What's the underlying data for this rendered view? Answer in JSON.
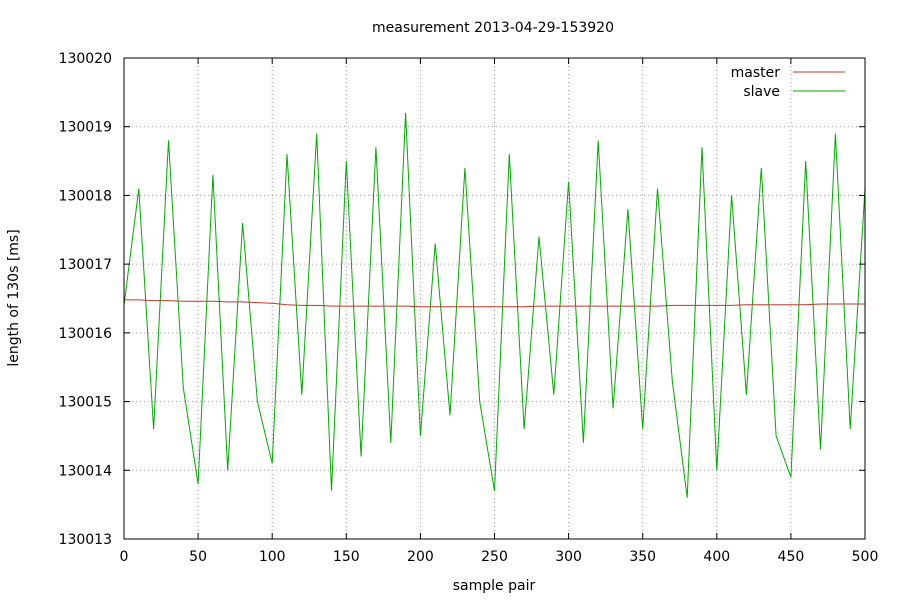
{
  "chart_data": {
    "type": "line",
    "title": "measurement 2013-04-29-153920",
    "xlabel": "sample pair",
    "ylabel": "length of 130s [ms]",
    "xlim": [
      0,
      500
    ],
    "ylim": [
      130013,
      130020
    ],
    "x_ticks": [
      "0",
      "50",
      "100",
      "150",
      "200",
      "250",
      "300",
      "350",
      "400",
      "450",
      "500"
    ],
    "y_ticks": [
      "130013",
      "130014",
      "130015",
      "130016",
      "130017",
      "130018",
      "130019",
      "130020"
    ],
    "grid": true,
    "legend_position": "top-right",
    "series": [
      {
        "name": "master",
        "color": "#c0392b",
        "x": [
          0,
          10,
          20,
          30,
          40,
          50,
          60,
          70,
          80,
          90,
          100,
          110,
          120,
          130,
          140,
          150,
          160,
          170,
          180,
          190,
          200,
          210,
          220,
          230,
          240,
          250,
          260,
          270,
          280,
          290,
          300,
          310,
          320,
          330,
          340,
          350,
          360,
          370,
          380,
          390,
          400,
          410,
          420,
          430,
          440,
          450,
          460,
          470,
          480,
          490,
          500
        ],
        "values": [
          130016.48,
          130016.48,
          130016.47,
          130016.47,
          130016.46,
          130016.46,
          130016.46,
          130016.45,
          130016.45,
          130016.44,
          130016.43,
          130016.41,
          130016.4,
          130016.4,
          130016.39,
          130016.39,
          130016.39,
          130016.39,
          130016.39,
          130016.39,
          130016.38,
          130016.38,
          130016.38,
          130016.38,
          130016.38,
          130016.38,
          130016.38,
          130016.38,
          130016.39,
          130016.39,
          130016.39,
          130016.39,
          130016.39,
          130016.39,
          130016.39,
          130016.39,
          130016.39,
          130016.4,
          130016.4,
          130016.4,
          130016.4,
          130016.4,
          130016.41,
          130016.41,
          130016.41,
          130016.41,
          130016.41,
          130016.42,
          130016.42,
          130016.42,
          130016.42
        ]
      },
      {
        "name": "slave",
        "color": "#00aa00",
        "x": [
          0,
          10,
          20,
          30,
          40,
          50,
          60,
          70,
          80,
          90,
          100,
          110,
          120,
          130,
          140,
          150,
          160,
          170,
          180,
          190,
          200,
          210,
          220,
          230,
          240,
          250,
          260,
          270,
          280,
          290,
          300,
          310,
          320,
          330,
          340,
          350,
          360,
          370,
          380,
          390,
          400,
          410,
          420,
          430,
          440,
          450,
          460,
          470,
          480,
          490,
          500
        ],
        "values": [
          130016.4,
          130018.1,
          130014.6,
          130018.8,
          130015.2,
          130013.8,
          130018.3,
          130014.0,
          130017.6,
          130015.0,
          130014.1,
          130018.6,
          130015.1,
          130018.9,
          130013.7,
          130018.5,
          130014.2,
          130018.7,
          130014.4,
          130019.2,
          130014.5,
          130017.3,
          130014.8,
          130018.4,
          130015.0,
          130013.7,
          130018.6,
          130014.6,
          130017.4,
          130015.1,
          130018.2,
          130014.4,
          130018.8,
          130014.9,
          130017.8,
          130014.6,
          130018.1,
          130015.3,
          130013.6,
          130018.7,
          130014.0,
          130018.0,
          130015.1,
          130018.4,
          130014.5,
          130013.9,
          130018.5,
          130014.3,
          130018.9,
          130014.6,
          130018.1
        ]
      }
    ]
  }
}
